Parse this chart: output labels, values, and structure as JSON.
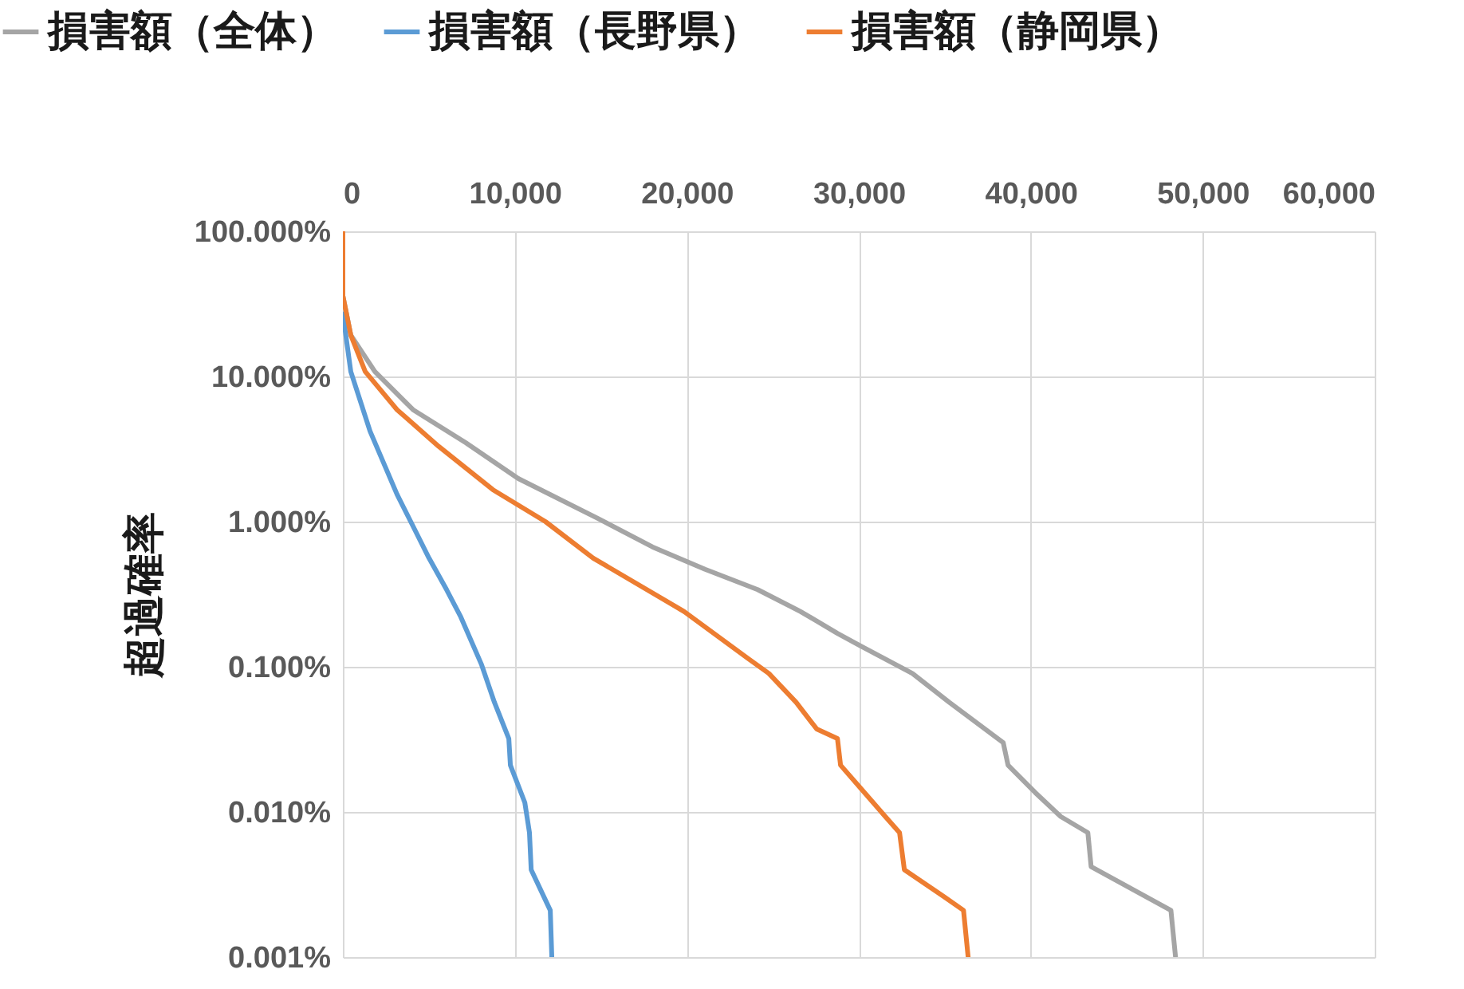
{
  "chart_data": {
    "type": "line",
    "ylabel": "超過確率",
    "log": "y",
    "grid": true,
    "legend": "top",
    "xlim": [
      0,
      60000
    ],
    "xticks": [
      0,
      {
        "value": 10000,
        "label": "10,000"
      },
      {
        "value": 20000,
        "label": "20,000"
      },
      {
        "value": 30000,
        "label": "30,000"
      },
      {
        "value": 40000,
        "label": "40,000"
      },
      {
        "value": 50000,
        "label": "50,000"
      },
      {
        "value": 60000,
        "label": "60,000"
      }
    ],
    "ylim": [
      0.001,
      100
    ],
    "yticks": [
      {
        "value": 0.001,
        "label": "0.001%"
      },
      {
        "value": 0.01,
        "label": "0.010%"
      },
      {
        "value": 0.1,
        "label": "0.100%"
      },
      {
        "value": 1,
        "label": "1.000%"
      },
      {
        "value": 10,
        "label": "10.000%"
      },
      {
        "value": 100,
        "label": "100.000%"
      }
    ],
    "series": [
      {
        "name": "損害額（全体）",
        "color": "#a5a5a5",
        "x": [
          0,
          0,
          460,
          1860,
          4080,
          7140,
          10200,
          14840,
          18000,
          21060,
          24120,
          26620,
          28760,
          30060,
          33120,
          35250,
          38400,
          38680,
          40260,
          41740,
          43320,
          43510,
          48150,
          48420
        ],
        "values": [
          100,
          36,
          19.3,
          10.8,
          5.9,
          3.5,
          1.98,
          1.05,
          0.67,
          0.47,
          0.34,
          0.24,
          0.17,
          0.14,
          0.09,
          0.057,
          0.03,
          0.021,
          0.0136,
          0.0093,
          0.0072,
          0.0042,
          0.0021,
          0.001
        ]
      },
      {
        "name": "損害額（長野県）",
        "color": "#5b9bd5",
        "x": [
          0,
          460,
          1580,
          3150,
          4080,
          5010,
          6030,
          6860,
          8070,
          8810,
          9650,
          9740,
          10580,
          10850,
          10950,
          12060,
          12150
        ],
        "values": [
          27,
          10.8,
          4.2,
          1.54,
          0.93,
          0.56,
          0.34,
          0.22,
          0.103,
          0.057,
          0.032,
          0.021,
          0.0116,
          0.0072,
          0.004,
          0.0021,
          0.001
        ]
      },
      {
        "name": "損害額（静岡県）",
        "color": "#ed7d31",
        "x": [
          0,
          0,
          460,
          1300,
          3150,
          5570,
          8720,
          11780,
          14560,
          19850,
          23560,
          24770,
          26350,
          27550,
          28760,
          28940,
          30330,
          31540,
          32370,
          32650,
          34970,
          36090,
          36360
        ],
        "values": [
          100,
          36,
          19.3,
          10.8,
          5.9,
          3.3,
          1.66,
          1.0,
          0.56,
          0.24,
          0.114,
          0.09,
          0.057,
          0.0373,
          0.032,
          0.021,
          0.0136,
          0.0093,
          0.0072,
          0.004,
          0.0026,
          0.0021,
          0.001
        ]
      }
    ]
  }
}
